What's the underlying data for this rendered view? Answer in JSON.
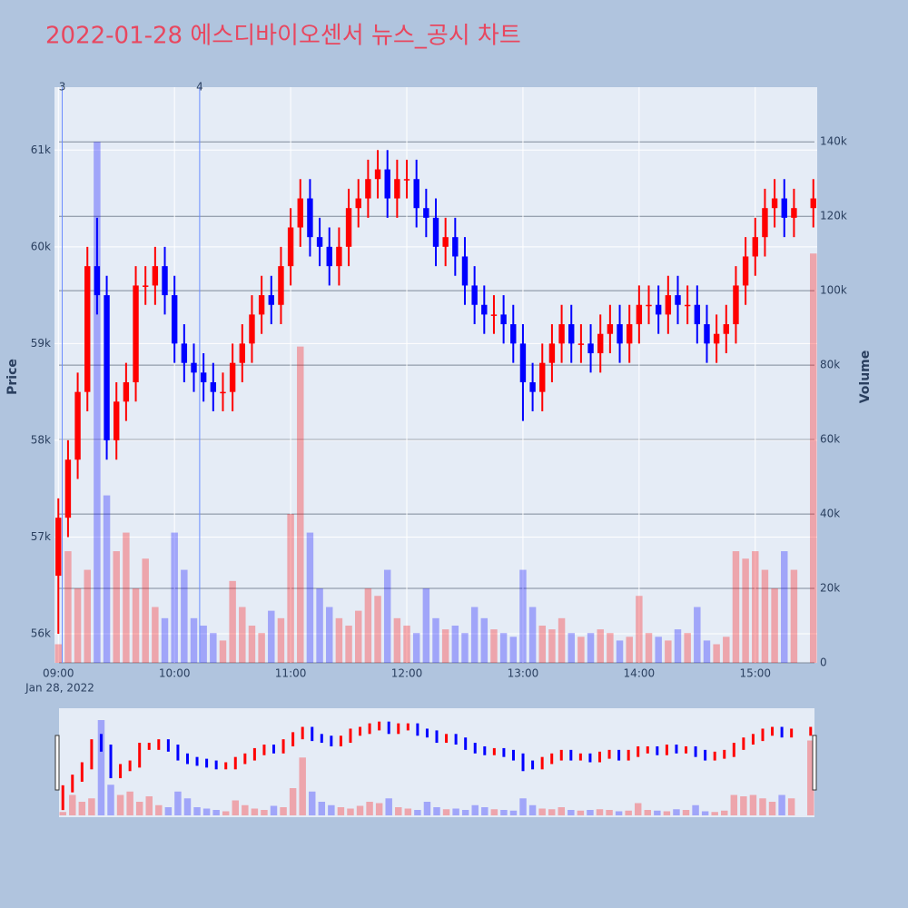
{
  "chart_data": {
    "type": "candlestick",
    "title": "2022-01-28 에스디바이오센서 뉴스_공시 차트",
    "y_title": "Price",
    "y2_title": "Volume",
    "x_date_label": "Jan 28, 2022",
    "increasing_color": "#ff0000",
    "decreasing_color": "#0000ff",
    "x": [
      "09:00",
      "09:05",
      "09:10",
      "09:15",
      "09:20",
      "09:25",
      "09:30",
      "09:35",
      "09:40",
      "09:45",
      "09:50",
      "09:55",
      "10:00",
      "10:05",
      "10:10",
      "10:15",
      "10:20",
      "10:25",
      "10:30",
      "10:35",
      "10:40",
      "10:45",
      "10:50",
      "10:55",
      "11:00",
      "11:05",
      "11:10",
      "11:15",
      "11:20",
      "11:25",
      "11:30",
      "11:35",
      "11:40",
      "11:45",
      "11:50",
      "11:55",
      "12:00",
      "12:05",
      "12:10",
      "12:15",
      "12:20",
      "12:25",
      "12:30",
      "12:35",
      "12:40",
      "12:45",
      "12:50",
      "12:55",
      "13:00",
      "13:05",
      "13:10",
      "13:15",
      "13:20",
      "13:25",
      "13:30",
      "13:35",
      "13:40",
      "13:45",
      "13:50",
      "13:55",
      "14:00",
      "14:05",
      "14:10",
      "14:15",
      "14:20",
      "14:25",
      "14:30",
      "14:35",
      "14:40",
      "14:45",
      "14:50",
      "14:55",
      "15:00",
      "15:05",
      "15:10",
      "15:15",
      "15:20",
      "15:30"
    ],
    "open": [
      56600,
      57200,
      57800,
      58500,
      59800,
      59500,
      58000,
      58400,
      58600,
      59600,
      59600,
      59800,
      59500,
      59000,
      58800,
      58700,
      58600,
      58500,
      58500,
      58800,
      59000,
      59300,
      59500,
      59400,
      59800,
      60200,
      60500,
      60100,
      60000,
      59800,
      60000,
      60400,
      60500,
      60700,
      60800,
      60500,
      60700,
      60700,
      60400,
      60300,
      60000,
      60100,
      59900,
      59600,
      59400,
      59300,
      59300,
      59200,
      59000,
      58600,
      58500,
      58800,
      59000,
      59200,
      59000,
      59000,
      58900,
      59100,
      59200,
      59000,
      59200,
      59400,
      59400,
      59300,
      59500,
      59400,
      59400,
      59200,
      59000,
      59100,
      59200,
      59600,
      59900,
      60100,
      60400,
      60500,
      60300,
      60400
    ],
    "high": [
      57400,
      58000,
      58700,
      60000,
      60300,
      59700,
      58600,
      58800,
      59800,
      59800,
      60000,
      60000,
      59700,
      59200,
      59000,
      58900,
      58800,
      58700,
      59000,
      59200,
      59500,
      59700,
      59700,
      60000,
      60400,
      60700,
      60700,
      60300,
      60200,
      60200,
      60600,
      60700,
      60900,
      61000,
      61000,
      60900,
      60900,
      60900,
      60600,
      60500,
      60300,
      60300,
      60100,
      59800,
      59600,
      59500,
      59500,
      59400,
      59200,
      58800,
      59000,
      59200,
      59400,
      59400,
      59200,
      59200,
      59300,
      59400,
      59400,
      59400,
      59600,
      59600,
      59600,
      59700,
      59700,
      59600,
      59600,
      59400,
      59300,
      59400,
      59800,
      60100,
      60300,
      60600,
      60700,
      60700,
      60600,
      60700
    ],
    "low": [
      56000,
      57000,
      57600,
      58300,
      59300,
      57800,
      57800,
      58200,
      58400,
      59400,
      59400,
      59300,
      58800,
      58600,
      58500,
      58400,
      58300,
      58300,
      58300,
      58600,
      58800,
      59100,
      59200,
      59200,
      59600,
      60000,
      59900,
      59800,
      59600,
      59600,
      59800,
      60200,
      60300,
      60500,
      60300,
      60300,
      60500,
      60200,
      60100,
      59800,
      59800,
      59700,
      59400,
      59200,
      59100,
      59100,
      59000,
      58800,
      58200,
      58300,
      58300,
      58600,
      58800,
      58800,
      58800,
      58700,
      58700,
      58900,
      58800,
      58800,
      59000,
      59200,
      59100,
      59100,
      59200,
      59200,
      59000,
      58800,
      58800,
      58900,
      59000,
      59400,
      59700,
      59900,
      60200,
      60100,
      60100,
      60200
    ],
    "close": [
      57200,
      57800,
      58500,
      59800,
      59500,
      58000,
      58400,
      58600,
      59600,
      59600,
      59800,
      59500,
      59000,
      58800,
      58700,
      58600,
      58500,
      58500,
      58800,
      59000,
      59300,
      59500,
      59400,
      59800,
      60200,
      60500,
      60100,
      60000,
      59800,
      60000,
      60400,
      60500,
      60700,
      60800,
      60500,
      60700,
      60700,
      60400,
      60300,
      60000,
      60100,
      59900,
      59600,
      59400,
      59300,
      59300,
      59200,
      59000,
      58600,
      58500,
      58800,
      59000,
      59200,
      59000,
      59000,
      58900,
      59100,
      59200,
      59000,
      59200,
      59400,
      59400,
      59300,
      59500,
      59400,
      59400,
      59200,
      59000,
      59100,
      59200,
      59600,
      59900,
      60100,
      60400,
      60500,
      60300,
      60400,
      60500
    ],
    "volume": [
      5000,
      30000,
      20000,
      25000,
      140000,
      45000,
      30000,
      35000,
      20000,
      28000,
      15000,
      12000,
      35000,
      25000,
      12000,
      10000,
      8000,
      6000,
      22000,
      15000,
      10000,
      8000,
      14000,
      12000,
      40000,
      85000,
      35000,
      20000,
      15000,
      12000,
      10000,
      14000,
      20000,
      18000,
      25000,
      12000,
      10000,
      8000,
      20000,
      12000,
      9000,
      10000,
      8000,
      15000,
      12000,
      9000,
      8000,
      7000,
      25000,
      15000,
      10000,
      9000,
      12000,
      8000,
      7000,
      8000,
      9000,
      8000,
      6000,
      7000,
      18000,
      8000,
      7000,
      6000,
      9000,
      8000,
      15000,
      6000,
      5000,
      7000,
      30000,
      28000,
      30000,
      25000,
      20000,
      30000,
      25000,
      110000
    ],
    "xlim": [
      "08:58",
      "15:32"
    ],
    "xticks": [
      "09:00",
      "10:00",
      "11:00",
      "12:00",
      "13:00",
      "14:00",
      "15:00"
    ],
    "ylim": [
      55700,
      61650
    ],
    "yticks": [
      {
        "value": 56000,
        "label": "56k"
      },
      {
        "value": 57000,
        "label": "57k"
      },
      {
        "value": 58000,
        "label": "58k"
      },
      {
        "value": 59000,
        "label": "59k"
      },
      {
        "value": 60000,
        "label": "60k"
      },
      {
        "value": 61000,
        "label": "61k"
      }
    ],
    "y2lim": [
      0,
      154700
    ],
    "y2ticks": [
      0,
      {
        "value": 20000,
        "label": "20k"
      },
      {
        "value": 40000,
        "label": "40k"
      },
      {
        "value": 60000,
        "label": "60k"
      },
      {
        "value": 80000,
        "label": "80k"
      },
      {
        "value": 100000,
        "label": "100k"
      },
      {
        "value": 120000,
        "label": "120k"
      },
      {
        "value": 140000,
        "label": "140k"
      }
    ],
    "events": [
      {
        "x": "09:02",
        "label": "3"
      },
      {
        "x": "10:13",
        "label": "4"
      }
    ]
  }
}
